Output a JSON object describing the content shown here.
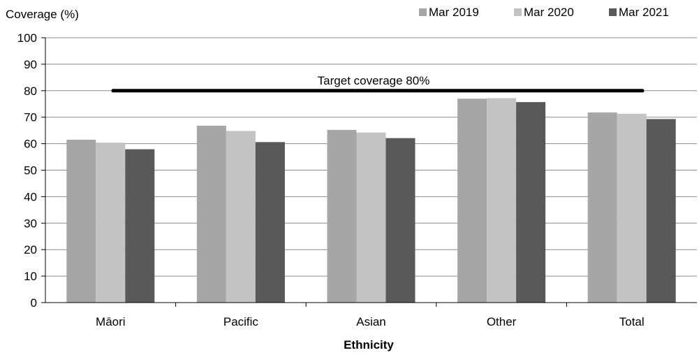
{
  "chart_data": {
    "type": "bar",
    "ylabel": "Coverage (%)",
    "xlabel": "Ethnicity",
    "ylim": [
      0,
      100
    ],
    "yticks": [
      0,
      10,
      20,
      30,
      40,
      50,
      60,
      70,
      80,
      90,
      100
    ],
    "grid": true,
    "legend_position": "top-right",
    "categories": [
      "Māori",
      "Pacific",
      "Asian",
      "Other",
      "Total"
    ],
    "series": [
      {
        "name": "Mar 2019",
        "color": "#a6a6a6",
        "values": [
          61.5,
          66.8,
          65.2,
          77.0,
          71.8
        ]
      },
      {
        "name": "Mar 2020",
        "color": "#c3c3c3",
        "values": [
          60.4,
          64.8,
          64.2,
          77.2,
          71.3
        ]
      },
      {
        "name": "Mar 2021",
        "color": "#595959",
        "values": [
          57.9,
          60.6,
          62.1,
          75.7,
          69.3
        ]
      }
    ],
    "reference_line": {
      "value": 80,
      "label": "Target coverage 80%",
      "color": "#000000"
    }
  }
}
